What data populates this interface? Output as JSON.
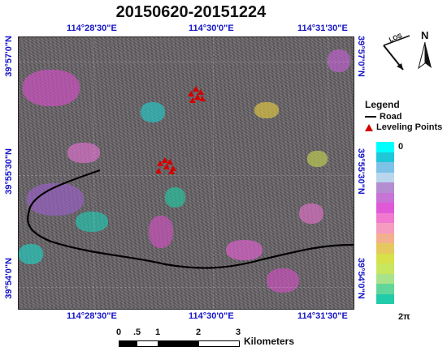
{
  "title": "20150620-20151224",
  "axes": {
    "lon_labels": [
      "114°28'30\"E",
      "114°30'0\"E",
      "114°31'30\"E"
    ],
    "lat_labels": [
      "39°57'0\"N",
      "39°55'30\"N",
      "39°54'0\"N"
    ]
  },
  "compass": {
    "los_label": "LOS",
    "north_label": "N"
  },
  "legend": {
    "title": "Legend",
    "items": [
      {
        "label": "Road",
        "symbol": "line",
        "color": "#000000"
      },
      {
        "label": "Leveling Points",
        "symbol": "triangle",
        "color": "#d40000"
      }
    ]
  },
  "colorbar": {
    "top_label": "0",
    "bottom_label": "2π",
    "colors": [
      "#00ffff",
      "#1fc8d8",
      "#7ec2e8",
      "#b9d6ee",
      "#b48ed0",
      "#c873d6",
      "#e05ad8",
      "#f07ad0",
      "#f59cc0",
      "#f3b08e",
      "#e6c860",
      "#d8e04a",
      "#c8e660",
      "#a8e28a",
      "#62d69a",
      "#22ccaa"
    ]
  },
  "scale_bar": {
    "ticks": [
      "0",
      ".5",
      "1",
      "2",
      "3"
    ],
    "unit": "Kilometers"
  },
  "colors": {
    "coordinate_text": "#1515c8",
    "leveling_points": "#d40000"
  }
}
